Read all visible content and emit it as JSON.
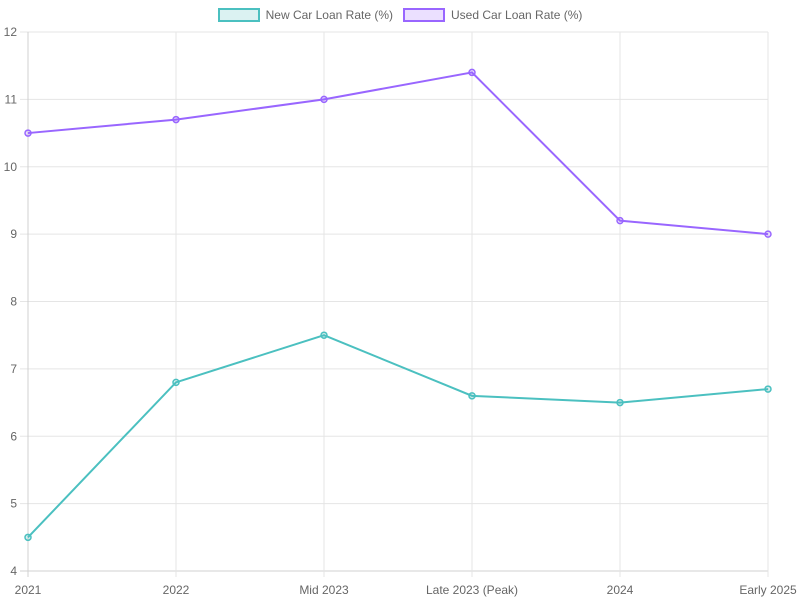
{
  "chart_data": {
    "type": "line",
    "title": "",
    "xlabel": "",
    "ylabel": "",
    "categories": [
      "2021",
      "2022",
      "Mid 2023",
      "Late 2023 (Peak)",
      "2024",
      "Early 2025"
    ],
    "series": [
      {
        "name": "New Car Loan Rate (%)",
        "values": [
          4.5,
          6.8,
          7.5,
          6.6,
          6.5,
          6.7
        ],
        "color": "#4bc0c0",
        "fill": "rgba(75,192,192,0.2)"
      },
      {
        "name": "Used Car Loan Rate (%)",
        "values": [
          10.5,
          10.7,
          11.0,
          11.4,
          9.2,
          9.0
        ],
        "color": "#9966ff",
        "fill": "rgba(153,102,255,0.2)"
      }
    ],
    "ylim": [
      4,
      12
    ],
    "yticks": [
      4,
      5,
      6,
      7,
      8,
      9,
      10,
      11,
      12
    ],
    "grid": true,
    "legend_position": "top"
  },
  "legend": {
    "items": [
      {
        "label": "New Car Loan Rate (%)"
      },
      {
        "label": "Used Car Loan Rate (%)"
      }
    ]
  }
}
